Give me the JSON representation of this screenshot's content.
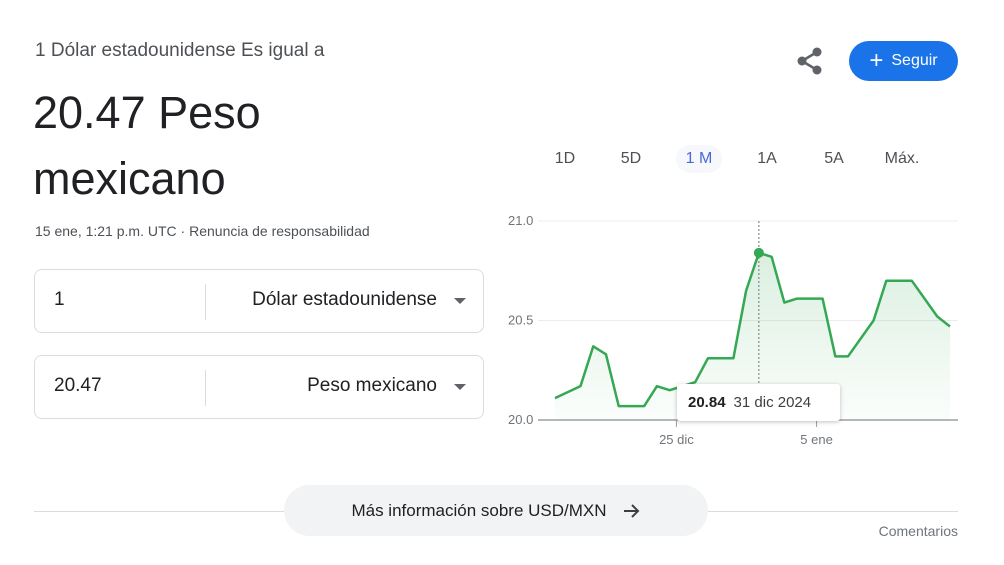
{
  "header": {
    "subtitle": "1 Dólar estadounidense Es igual a",
    "rate_line": "20.47 Peso mexicano",
    "timestamp": "15 ene, 1:21 p.m. UTC",
    "separator": " · ",
    "disclaimer": "Renuncia de responsabilidad"
  },
  "actions": {
    "share_icon": "share-icon",
    "follow_label": "Seguir",
    "follow_color": "#1a73e8"
  },
  "converter": [
    {
      "value": "1",
      "currency": "Dólar estadounidense"
    },
    {
      "value": "20.47",
      "currency": "Peso mexicano"
    }
  ],
  "range_tabs": [
    {
      "label": "1D"
    },
    {
      "label": "5D"
    },
    {
      "label": "1 M",
      "active": true
    },
    {
      "label": "1A"
    },
    {
      "label": "5A"
    },
    {
      "label": "Máx."
    }
  ],
  "tooltip": {
    "value": "20.84",
    "date": "31 dic 2024"
  },
  "chart_data": {
    "type": "area",
    "line_color": "#34a853",
    "ylim": [
      20.0,
      21.0
    ],
    "yticks": [
      "21.0",
      "20.5",
      "20.0"
    ],
    "xlim": [
      "2024-12-15",
      "2025-01-15"
    ],
    "xticks": [
      {
        "date": "2024-12-25",
        "label": "25 dic"
      },
      {
        "date": "2025-01-05",
        "label": "5 ene"
      }
    ],
    "grid": true,
    "highlight": {
      "x": "2024-12-31",
      "y": 20.84
    },
    "x": [
      "2024-12-15",
      "2024-12-17",
      "2024-12-18",
      "2024-12-19",
      "2024-12-20",
      "2024-12-22",
      "2024-12-23",
      "2024-12-24",
      "2024-12-26",
      "2024-12-27",
      "2024-12-29",
      "2024-12-30",
      "2024-12-31",
      "2025-01-01",
      "2025-01-02",
      "2025-01-03",
      "2025-01-05",
      "2025-01-06",
      "2025-01-07",
      "2025-01-09",
      "2025-01-10",
      "2025-01-12",
      "2025-01-14",
      "2025-01-15"
    ],
    "y": [
      20.11,
      20.17,
      20.37,
      20.33,
      20.07,
      20.07,
      20.17,
      20.15,
      20.19,
      20.31,
      20.31,
      20.65,
      20.84,
      20.82,
      20.59,
      20.61,
      20.61,
      20.32,
      20.32,
      20.5,
      20.7,
      20.7,
      20.52,
      20.47
    ]
  },
  "footer": {
    "more_label": "Más información sobre USD/MXN",
    "feedback": "Comentarios"
  }
}
